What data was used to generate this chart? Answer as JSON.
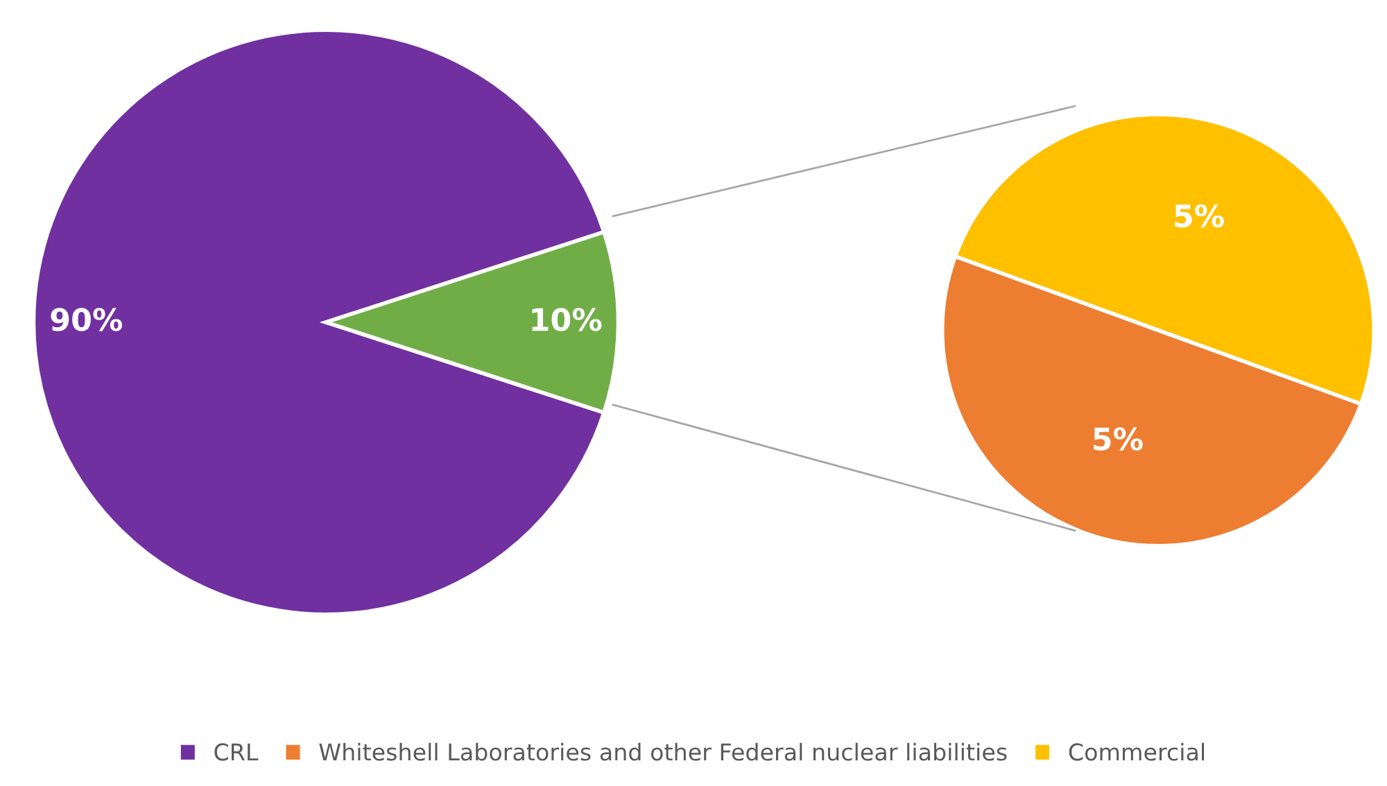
{
  "chart_data": [
    {
      "type": "pie",
      "categories": [
        "CRL",
        null
      ],
      "values": [
        90,
        10
      ],
      "colors": [
        "#7030a0",
        "#70ad47"
      ],
      "data_labels": true,
      "value_labels": [
        "90%",
        "10%"
      ],
      "legend": "bottom"
    },
    {
      "type": "pie",
      "categories": [
        "Whiteshell Laboratories and other Federal nuclear liabilities",
        "Commercial"
      ],
      "values": [
        5,
        5
      ],
      "colors": [
        "#ed7d31",
        "#ffc000"
      ],
      "data_labels": true,
      "value_labels": [
        "5%",
        "5%"
      ],
      "legend": "bottom"
    }
  ]
}
